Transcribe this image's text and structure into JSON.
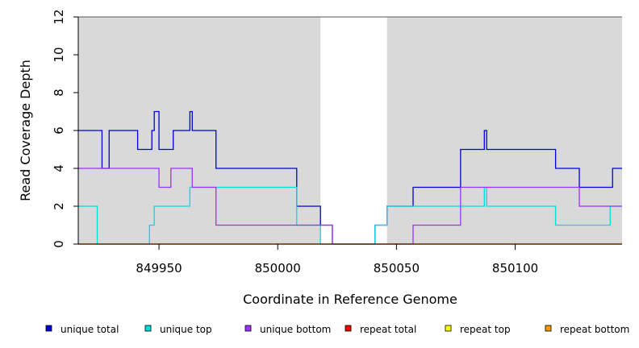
{
  "chart_data": {
    "type": "line",
    "title": "",
    "xlabel": "Coordinate in Reference Genome",
    "ylabel": "Read Coverage Depth",
    "xlim": [
      849916,
      850145
    ],
    "ylim": [
      0,
      12
    ],
    "xticks": [
      849950,
      850000,
      850050,
      850100
    ],
    "yticks": [
      0,
      2,
      4,
      6,
      8,
      10,
      12
    ],
    "grid": false,
    "legend_position": "bottom",
    "shaded_regions": [
      {
        "x_start": 849916,
        "x_end": 850018,
        "color": "#d9d9d9"
      },
      {
        "x_start": 850046,
        "x_end": 850145,
        "color": "#d9d9d9"
      }
    ],
    "series": [
      {
        "name": "unique total",
        "color": "#0000dd",
        "x": [
          849916,
          849926,
          849929,
          849941,
          849947,
          849948,
          849950,
          849952,
          849956,
          849963,
          849964,
          849974,
          850008,
          850018,
          850023,
          850041,
          850046,
          850057,
          850077,
          850087,
          850088,
          850117,
          850127,
          850141,
          850145
        ],
        "y": [
          6,
          4,
          6,
          5,
          6,
          7,
          5,
          5,
          6,
          7,
          6,
          4,
          2,
          1,
          0,
          1,
          2,
          3,
          5,
          6,
          5,
          4,
          3,
          4,
          4
        ]
      },
      {
        "name": "unique top",
        "color": "#00dddd",
        "x": [
          849916,
          849924,
          849946,
          849947,
          849948,
          849963,
          850008,
          850018,
          850023,
          850041,
          850046,
          850087,
          850088,
          850117,
          850140,
          850145
        ],
        "y": [
          2,
          0,
          1,
          1,
          2,
          3,
          1,
          0,
          0,
          1,
          2,
          3,
          2,
          1,
          2,
          2
        ]
      },
      {
        "name": "unique bottom",
        "color": "#9933ff",
        "x": [
          849916,
          849950,
          849955,
          849964,
          849974,
          850018,
          850023,
          850052,
          850057,
          850077,
          850127,
          850145
        ],
        "y": [
          4,
          3,
          4,
          3,
          1,
          1,
          0,
          0,
          1,
          3,
          2,
          2
        ]
      },
      {
        "name": "repeat total",
        "color": "#ff0000",
        "x": [
          849916,
          850145
        ],
        "y": [
          0,
          0
        ]
      },
      {
        "name": "repeat top",
        "color": "#ffff00",
        "x": [
          849916,
          850145
        ],
        "y": [
          0,
          0
        ]
      },
      {
        "name": "repeat bottom",
        "color": "#ff9900",
        "x": [
          849916,
          850145
        ],
        "y": [
          0,
          0
        ]
      }
    ]
  }
}
